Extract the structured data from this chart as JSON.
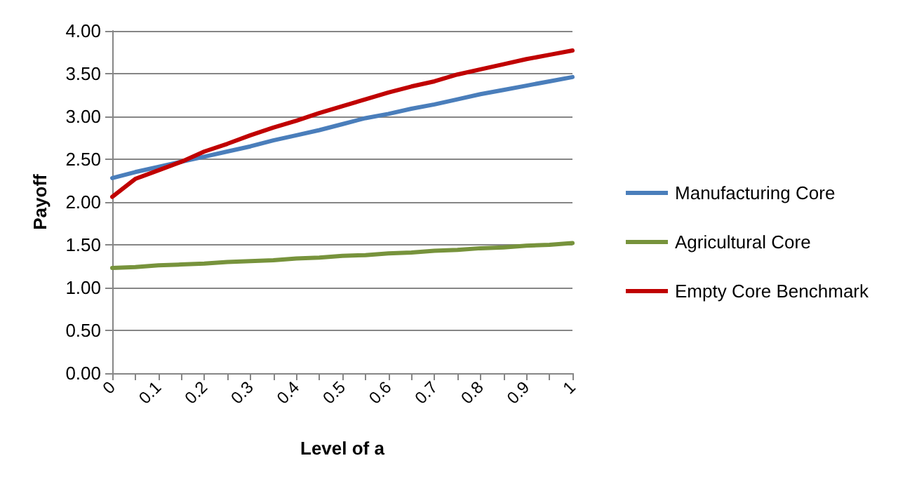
{
  "chart_data": {
    "type": "line",
    "xlabel": "Level of a",
    "ylabel": "Payoff",
    "x": [
      0,
      0.05,
      0.1,
      0.15,
      0.2,
      0.25,
      0.3,
      0.35,
      0.4,
      0.45,
      0.5,
      0.55,
      0.6,
      0.65,
      0.7,
      0.75,
      0.8,
      0.85,
      0.9,
      0.95,
      1
    ],
    "series": [
      {
        "name": "Manufacturing Core",
        "color": "#4a7ebb",
        "values": [
          2.28,
          2.35,
          2.41,
          2.47,
          2.53,
          2.59,
          2.65,
          2.72,
          2.78,
          2.84,
          2.91,
          2.98,
          3.03,
          3.09,
          3.14,
          3.2,
          3.26,
          3.31,
          3.36,
          3.41,
          3.46
        ]
      },
      {
        "name": "Agricultural Core",
        "color": "#77933c",
        "values": [
          1.23,
          1.24,
          1.26,
          1.27,
          1.28,
          1.3,
          1.31,
          1.32,
          1.34,
          1.35,
          1.37,
          1.38,
          1.4,
          1.41,
          1.43,
          1.44,
          1.46,
          1.47,
          1.49,
          1.5,
          1.52
        ]
      },
      {
        "name": "Empty Core Benchmark",
        "color": "#c00000",
        "values": [
          2.06,
          2.27,
          2.37,
          2.47,
          2.59,
          2.68,
          2.78,
          2.87,
          2.95,
          3.04,
          3.12,
          3.2,
          3.28,
          3.35,
          3.41,
          3.49,
          3.55,
          3.61,
          3.67,
          3.72,
          3.77
        ]
      }
    ],
    "xlim": [
      0,
      1
    ],
    "xticks": [
      0,
      {
        "value": 0.05,
        "label": null
      },
      0.1,
      {
        "value": 0.15,
        "label": null
      },
      0.2,
      {
        "value": 0.25,
        "label": null
      },
      0.3,
      {
        "value": 0.35,
        "label": null
      },
      0.4,
      {
        "value": 0.45,
        "label": null
      },
      0.5,
      {
        "value": 0.55,
        "label": null
      },
      0.6,
      {
        "value": 0.65,
        "label": null
      },
      0.7,
      {
        "value": 0.75,
        "label": null
      },
      0.8,
      {
        "value": 0.85,
        "label": null
      },
      0.9,
      {
        "value": 0.95,
        "label": null
      },
      1
    ],
    "ylim": [
      0,
      4
    ],
    "yticks": [
      {
        "value": 0,
        "label": "0.00"
      },
      {
        "value": 0.5,
        "label": "0.50"
      },
      {
        "value": 1,
        "label": "1.00"
      },
      {
        "value": 1.5,
        "label": "1.50"
      },
      {
        "value": 2,
        "label": "2.00"
      },
      {
        "value": 2.5,
        "label": "2.50"
      },
      {
        "value": 3,
        "label": "3.00"
      },
      {
        "value": 3.5,
        "label": "3.50"
      },
      {
        "value": 4,
        "label": "4.00"
      }
    ],
    "grid": "y",
    "legend": "right",
    "marker": "none",
    "line_style": "solid"
  }
}
